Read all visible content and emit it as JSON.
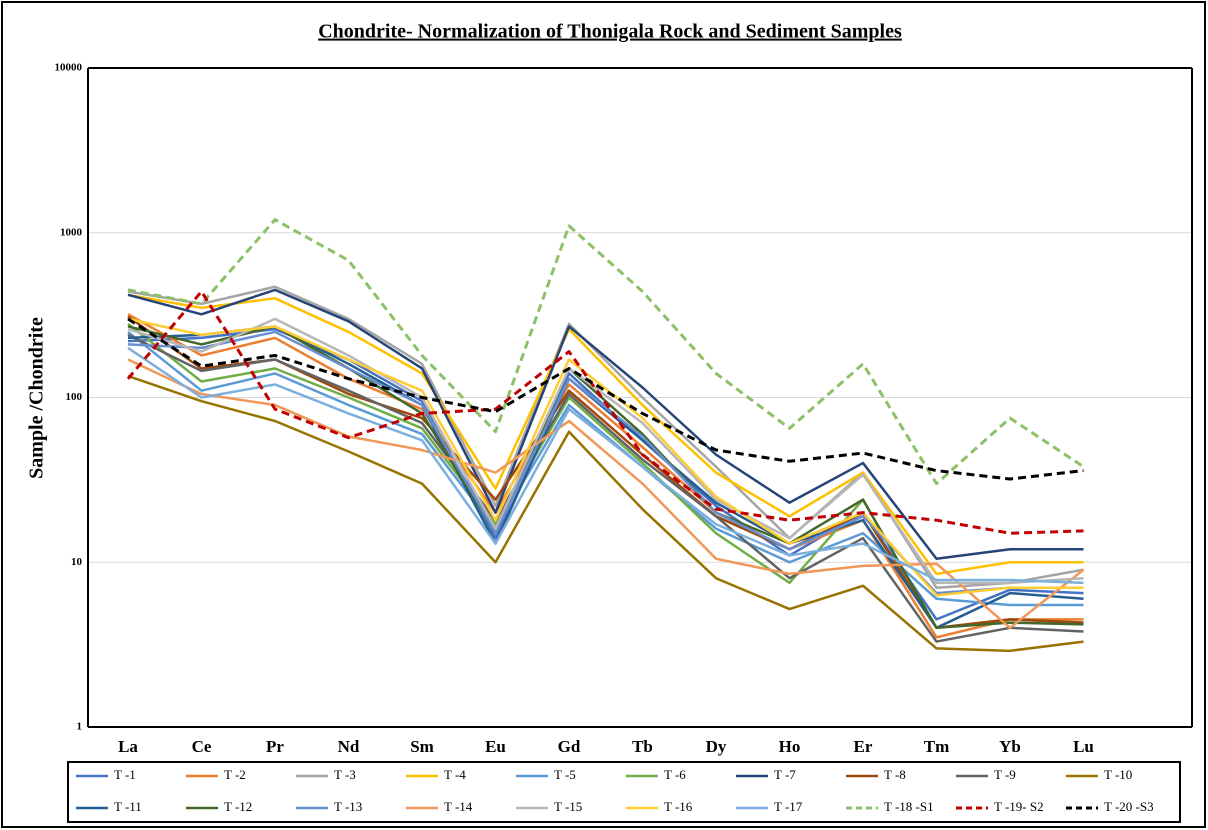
{
  "chart_data": {
    "type": "line",
    "title": "Chondrite- Normalization of Thonigala Rock and Sediment Samples",
    "y_label": "Sample /Chondrite",
    "log_scale": true,
    "grid": true,
    "ylim": [
      1,
      10000
    ],
    "yticks": [
      1,
      10,
      100,
      1000,
      10000
    ],
    "categories": [
      "La",
      "Ce",
      "Pr",
      "Nd",
      "Sm",
      "Eu",
      "Gd",
      "Tb",
      "Dy",
      "Ho",
      "Er",
      "Tm",
      "Yb",
      "Lu"
    ],
    "series": [
      {
        "name": "T -1",
        "color": "#4472c4",
        "dashed": false,
        "values": [
          220,
          230,
          260,
          170,
          95,
          14,
          140,
          55,
          22,
          11,
          20,
          4.5,
          6.8,
          6.5
        ]
      },
      {
        "name": "T -2",
        "color": "#ed7d31",
        "dashed": false,
        "values": [
          320,
          180,
          230,
          130,
          85,
          20,
          120,
          50,
          20,
          12,
          18,
          3.5,
          4.5,
          4.5
        ]
      },
      {
        "name": "T -3",
        "color": "#a5a5a5",
        "dashed": false,
        "values": [
          440,
          370,
          470,
          300,
          160,
          22,
          280,
          100,
          38,
          14,
          35,
          7,
          7.5,
          9
        ]
      },
      {
        "name": "T -4",
        "color": "#ffc000",
        "dashed": false,
        "values": [
          420,
          350,
          400,
          250,
          140,
          28,
          260,
          90,
          35,
          19,
          35,
          8.5,
          10,
          10
        ]
      },
      {
        "name": "T -5",
        "color": "#5b9bd5",
        "dashed": false,
        "values": [
          250,
          110,
          140,
          90,
          60,
          16,
          90,
          38,
          16,
          10,
          15,
          6,
          5.5,
          5.5
        ]
      },
      {
        "name": "T -6",
        "color": "#70ad47",
        "dashed": false,
        "values": [
          280,
          125,
          150,
          100,
          65,
          17,
          100,
          40,
          15,
          7.5,
          24,
          4,
          4.5,
          4.3
        ]
      },
      {
        "name": "T -7",
        "color": "#264478",
        "dashed": false,
        "values": [
          420,
          320,
          450,
          290,
          150,
          20,
          270,
          115,
          45,
          23,
          40,
          10.5,
          12,
          12
        ]
      },
      {
        "name": "T -8",
        "color": "#9e480e",
        "dashed": false,
        "values": [
          310,
          150,
          170,
          105,
          75,
          24,
          110,
          45,
          19,
          12,
          20,
          4,
          4.5,
          4.3
        ]
      },
      {
        "name": "T -9",
        "color": "#636363",
        "dashed": false,
        "values": [
          240,
          145,
          170,
          110,
          70,
          18,
          105,
          42,
          19,
          8,
          14,
          3.3,
          4,
          3.8
        ]
      },
      {
        "name": "T -10",
        "color": "#997300",
        "dashed": false,
        "values": [
          135,
          95,
          72,
          47,
          30,
          10,
          62,
          21,
          8,
          5.2,
          7.2,
          3,
          2.9,
          3.3
        ]
      },
      {
        "name": "T -11",
        "color": "#255e91",
        "dashed": false,
        "values": [
          230,
          240,
          270,
          160,
          90,
          13,
          130,
          55,
          23,
          13,
          18,
          4,
          6.5,
          6
        ]
      },
      {
        "name": "T -12",
        "color": "#43682b",
        "dashed": false,
        "values": [
          270,
          210,
          270,
          150,
          80,
          15,
          150,
          60,
          20,
          13,
          24,
          4,
          4.3,
          4.2
        ]
      },
      {
        "name": "T -13",
        "color": "#698ed0",
        "dashed": false,
        "values": [
          210,
          200,
          250,
          150,
          90,
          15,
          130,
          58,
          20,
          12,
          19,
          6.5,
          7,
          7
        ]
      },
      {
        "name": "T -14",
        "color": "#f1975a",
        "dashed": false,
        "values": [
          170,
          105,
          90,
          58,
          48,
          35,
          72,
          30,
          10.5,
          8.5,
          9.5,
          9.8,
          4,
          9
        ]
      },
      {
        "name": "T -15",
        "color": "#b7b7b7",
        "dashed": false,
        "values": [
          260,
          190,
          300,
          180,
          100,
          16,
          150,
          70,
          24,
          14,
          34,
          7.5,
          7.5,
          8
        ]
      },
      {
        "name": "T -16",
        "color": "#ffcd33",
        "dashed": false,
        "values": [
          300,
          240,
          270,
          170,
          110,
          18,
          170,
          75,
          25,
          13,
          20,
          6.3,
          7,
          7
        ]
      },
      {
        "name": "T -17",
        "color": "#7cafdd",
        "dashed": false,
        "values": [
          200,
          100,
          120,
          80,
          55,
          13,
          85,
          38,
          17,
          11,
          13,
          7.8,
          7.8,
          7.5
        ]
      },
      {
        "name": "T -18 -S1",
        "color": "#8cc168",
        "dashed": true,
        "values": [
          450,
          370,
          1200,
          680,
          180,
          62,
          1100,
          440,
          140,
          65,
          160,
          30,
          75,
          38
        ]
      },
      {
        "name": "T -19- S2",
        "color": "#c00000",
        "dashed": true,
        "values": [
          130,
          440,
          85,
          57,
          80,
          85,
          190,
          45,
          21,
          18,
          20,
          18,
          15,
          15.5
        ]
      },
      {
        "name": "T -20 -S3",
        "color": "#000000",
        "dashed": true,
        "values": [
          300,
          155,
          180,
          130,
          100,
          82,
          150,
          80,
          48,
          41,
          46,
          36,
          32,
          36
        ]
      }
    ]
  }
}
